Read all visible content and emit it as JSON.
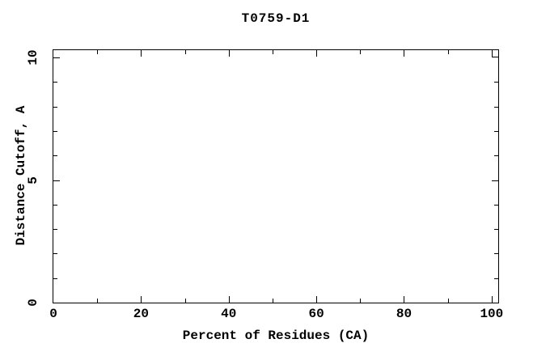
{
  "chart_data": {
    "type": "line",
    "title": "T0759-D1",
    "xlabel": "Percent of Residues (CA)",
    "ylabel": "Distance Cutoff, A",
    "xlim": [
      0,
      101.5
    ],
    "ylim": [
      0,
      10.3
    ],
    "xticks": {
      "major": [
        0,
        20,
        40,
        60,
        80,
        100
      ],
      "labels": [
        "0",
        "20",
        "40",
        "60",
        "80",
        "100"
      ],
      "minor_step": 10,
      "max_labeled": 100
    },
    "yticks": {
      "major": [
        0,
        5,
        10
      ],
      "labels": [
        "0",
        "5",
        "10"
      ],
      "minor_step": 1,
      "max_labeled": 10
    },
    "grid": false,
    "legend": "none",
    "tick_style": "inward-mirrored",
    "frame_color": "#000000",
    "background_color": "#ffffff",
    "series": [
      {
        "name": "T0759-D1",
        "marker": "open-square",
        "points": [
          [
            100,
            10
          ]
        ]
      }
    ]
  }
}
